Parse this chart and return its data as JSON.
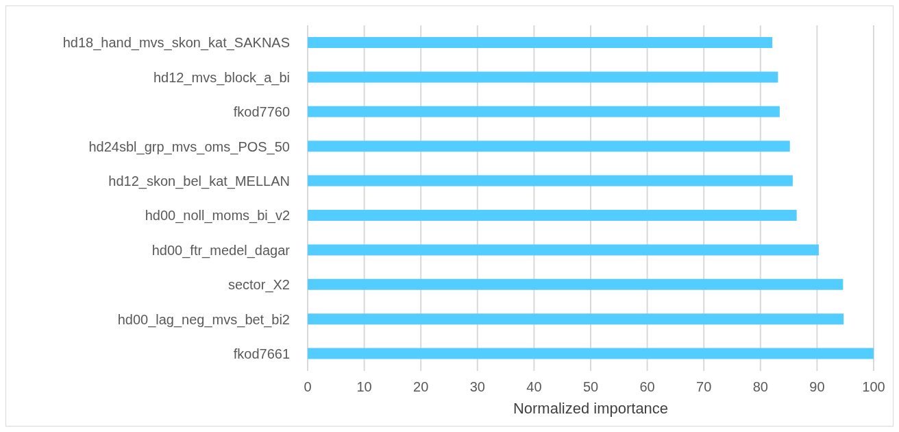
{
  "chart_data": {
    "type": "bar",
    "orientation": "horizontal",
    "xlabel": "Normalized importance",
    "categories": [
      "hd18_hand_mvs_skon_kat_SAKNAS",
      "hd12_mvs_block_a_bi",
      "fkod7760",
      "hd24sbl_grp_mvs_oms_POS_50",
      "hd12_skon_bel_kat_MELLAN",
      "hd00_noll_moms_bi_v2",
      "hd00_ftr_medel_dagar",
      "sector_X2",
      "hd00_lag_neg_mvs_bet_bi2",
      "fkod7661"
    ],
    "values": [
      82.1,
      83.1,
      83.4,
      85.2,
      85.7,
      86.4,
      90.3,
      94.6,
      94.7,
      100
    ],
    "color": "#53ccff",
    "xlim": [
      0,
      100
    ],
    "xticks": [
      0,
      10,
      20,
      30,
      40,
      50,
      60,
      70,
      80,
      90,
      100
    ],
    "grid": "x"
  }
}
